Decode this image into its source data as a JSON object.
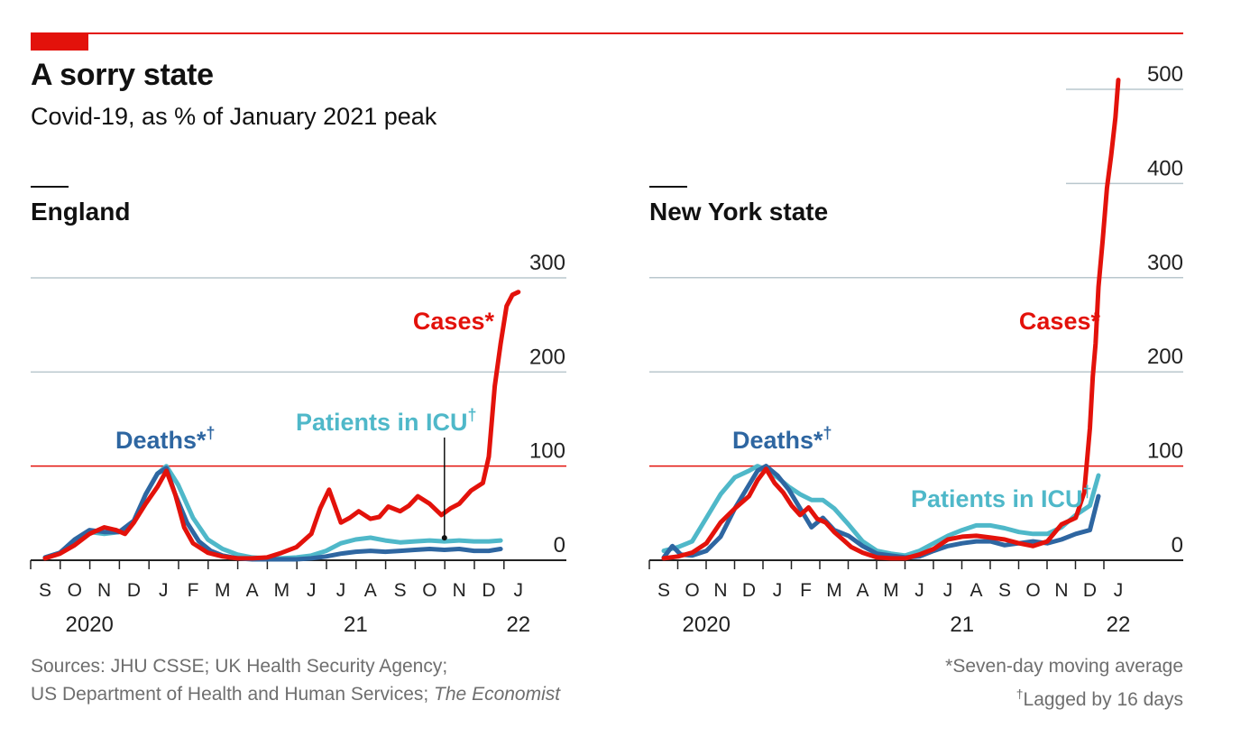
{
  "title": "A sorry state",
  "subtitle": "Covid-19, as % of January 2021 peak",
  "colors": {
    "accent": "#e3120b",
    "cases": "#e3120b",
    "icu": "#4fb8c9",
    "deaths": "#2e66a1",
    "grid": "#b9c7cd",
    "axis": "#222222",
    "source_text": "#6e6e6e"
  },
  "sources_line1": "Sources: JHU CSSE; UK Health Security Agency;",
  "sources_line2_a": "US Department of Health and Human Services; ",
  "sources_line2_b": "The Economist",
  "note_avg": "*Seven-day moving average",
  "note_lag_mark": "†",
  "note_lag": "Lagged by 16 days",
  "chart_data": [
    {
      "type": "line",
      "title": "England",
      "x_unit": "month index (0 = Sep 2020)",
      "xlim": [
        0,
        17
      ],
      "ylim": [
        0,
        300
      ],
      "yticks": [
        0,
        100,
        200,
        300
      ],
      "reference_line": 100,
      "grid": true,
      "month_labels": [
        "S",
        "O",
        "N",
        "D",
        "J",
        "F",
        "M",
        "A",
        "M",
        "J",
        "J",
        "A",
        "S",
        "O",
        "N",
        "D",
        "J"
      ],
      "year_labels": [
        {
          "x": 1.5,
          "label": "2020"
        },
        {
          "x": 10.5,
          "label": "21"
        },
        {
          "x": 16.0,
          "label": "22"
        }
      ],
      "series": [
        {
          "name": "Cases*",
          "color_key": "cases",
          "x": [
            0,
            0.5,
            1,
            1.5,
            2,
            2.4,
            2.7,
            3,
            3.4,
            3.8,
            4.1,
            4.4,
            4.7,
            5,
            5.5,
            6,
            6.5,
            7,
            7.5,
            8,
            8.5,
            9,
            9.3,
            9.6,
            10,
            10.3,
            10.6,
            11,
            11.3,
            11.6,
            12,
            12.3,
            12.6,
            13,
            13.4,
            13.7,
            14,
            14.4,
            14.8,
            15,
            15.2,
            15.4,
            15.6,
            15.8,
            16.0
          ],
          "y": [
            2,
            7,
            16,
            28,
            35,
            32,
            28,
            40,
            60,
            78,
            95,
            70,
            35,
            18,
            8,
            4,
            2,
            2,
            3,
            8,
            14,
            28,
            55,
            75,
            40,
            45,
            52,
            44,
            46,
            57,
            52,
            58,
            68,
            60,
            48,
            55,
            60,
            74,
            82,
            110,
            185,
            230,
            270,
            282,
            285
          ]
        },
        {
          "name": "Patients in ICU†",
          "color_key": "icu",
          "x": [
            0,
            0.5,
            1,
            1.5,
            2,
            2.5,
            3,
            3.4,
            3.8,
            4.1,
            4.5,
            5,
            5.5,
            6,
            6.5,
            7,
            7.5,
            8,
            8.5,
            9,
            9.5,
            10,
            10.5,
            11,
            11.5,
            12,
            12.5,
            13,
            13.5,
            14,
            14.5,
            15,
            15.4
          ],
          "y": [
            3,
            8,
            20,
            30,
            28,
            30,
            40,
            70,
            92,
            100,
            80,
            45,
            22,
            12,
            6,
            3,
            2,
            2,
            3,
            5,
            10,
            18,
            22,
            24,
            21,
            19,
            20,
            21,
            20,
            21,
            20,
            20,
            21
          ]
        },
        {
          "name": "Deaths*†",
          "color_key": "deaths",
          "x": [
            0,
            0.5,
            1,
            1.5,
            2,
            2.5,
            3,
            3.4,
            3.8,
            4.1,
            4.4,
            4.8,
            5.2,
            5.6,
            6,
            6.5,
            7,
            7.5,
            8,
            8.5,
            9,
            9.5,
            10,
            10.5,
            11,
            11.5,
            12,
            12.5,
            13,
            13.5,
            14,
            14.5,
            15,
            15.4
          ],
          "y": [
            3,
            8,
            22,
            32,
            30,
            30,
            42,
            70,
            92,
            98,
            70,
            40,
            20,
            10,
            5,
            2,
            1,
            1,
            1,
            1,
            2,
            4,
            7,
            9,
            10,
            9,
            10,
            11,
            12,
            11,
            12,
            10,
            10,
            12
          ]
        }
      ],
      "labels": [
        {
          "text": "Cases*",
          "series": "Cases*"
        },
        {
          "text": "Patients in ICU†",
          "series": "Patients in ICU†"
        },
        {
          "text": "Deaths*†",
          "series": "Deaths*†"
        }
      ]
    },
    {
      "type": "line",
      "title": "New York state",
      "x_unit": "month index (0 = Sep 2020)",
      "xlim": [
        0,
        17
      ],
      "ylim": [
        0,
        500
      ],
      "yticks": [
        0,
        100,
        200,
        300,
        400,
        500
      ],
      "reference_line": 100,
      "grid": true,
      "month_labels": [
        "S",
        "O",
        "N",
        "D",
        "J",
        "F",
        "M",
        "A",
        "M",
        "J",
        "J",
        "A",
        "S",
        "O",
        "N",
        "D",
        "J"
      ],
      "year_labels": [
        {
          "x": 1.5,
          "label": "2020"
        },
        {
          "x": 10.5,
          "label": "21"
        },
        {
          "x": 16.0,
          "label": "22"
        }
      ],
      "series": [
        {
          "name": "Cases*",
          "color_key": "cases",
          "x": [
            0,
            0.5,
            1,
            1.5,
            2,
            2.5,
            3,
            3.3,
            3.6,
            3.9,
            4.2,
            4.5,
            4.8,
            5.1,
            5.4,
            5.7,
            6,
            6.3,
            6.6,
            7,
            7.5,
            8,
            8.5,
            9,
            9.5,
            10,
            10.5,
            11,
            11.5,
            12,
            12.5,
            13,
            13.5,
            14,
            14.5,
            14.8,
            15,
            15.1,
            15.2,
            15.3,
            15.45,
            15.6,
            15.75,
            15.9,
            16.0
          ],
          "y": [
            2,
            4,
            8,
            18,
            40,
            55,
            68,
            85,
            97,
            82,
            72,
            58,
            48,
            56,
            44,
            40,
            30,
            22,
            14,
            8,
            3,
            2,
            2,
            6,
            12,
            22,
            25,
            26,
            24,
            22,
            18,
            15,
            20,
            38,
            45,
            72,
            140,
            195,
            230,
            290,
            340,
            395,
            430,
            470,
            510
          ]
        },
        {
          "name": "Patients in ICU†",
          "color_key": "icu",
          "x": [
            0,
            0.5,
            1,
            1.5,
            2,
            2.5,
            3,
            3.3,
            3.6,
            4,
            4.4,
            4.8,
            5.2,
            5.6,
            6,
            6.5,
            7,
            7.5,
            8,
            8.5,
            9,
            9.5,
            10,
            10.5,
            11,
            11.5,
            12,
            12.5,
            13,
            13.5,
            14,
            14.5,
            15,
            15.3
          ],
          "y": [
            10,
            14,
            20,
            45,
            70,
            88,
            95,
            100,
            96,
            88,
            78,
            70,
            64,
            64,
            55,
            38,
            20,
            10,
            7,
            5,
            10,
            18,
            26,
            32,
            37,
            37,
            34,
            30,
            28,
            28,
            35,
            48,
            58,
            90
          ]
        },
        {
          "name": "Deaths*†",
          "color_key": "deaths",
          "x": [
            0,
            0.3,
            0.6,
            1,
            1.5,
            2,
            2.5,
            3,
            3.3,
            3.6,
            4,
            4.4,
            4.8,
            5.2,
            5.6,
            6,
            6.5,
            7,
            7.5,
            8,
            8.5,
            9,
            9.5,
            10,
            10.5,
            11,
            11.5,
            12,
            12.5,
            13,
            13.5,
            14,
            14.5,
            15,
            15.3
          ],
          "y": [
            3,
            15,
            6,
            5,
            10,
            25,
            55,
            80,
            95,
            100,
            90,
            75,
            55,
            35,
            45,
            32,
            26,
            15,
            7,
            5,
            3,
            4,
            10,
            15,
            18,
            20,
            20,
            16,
            18,
            20,
            18,
            22,
            28,
            32,
            68
          ]
        }
      ],
      "labels": [
        {
          "text": "Cases*",
          "series": "Cases*"
        },
        {
          "text": "Patients in ICU†",
          "series": "Patients in ICU†"
        },
        {
          "text": "Deaths*†",
          "series": "Deaths*†"
        }
      ]
    }
  ]
}
